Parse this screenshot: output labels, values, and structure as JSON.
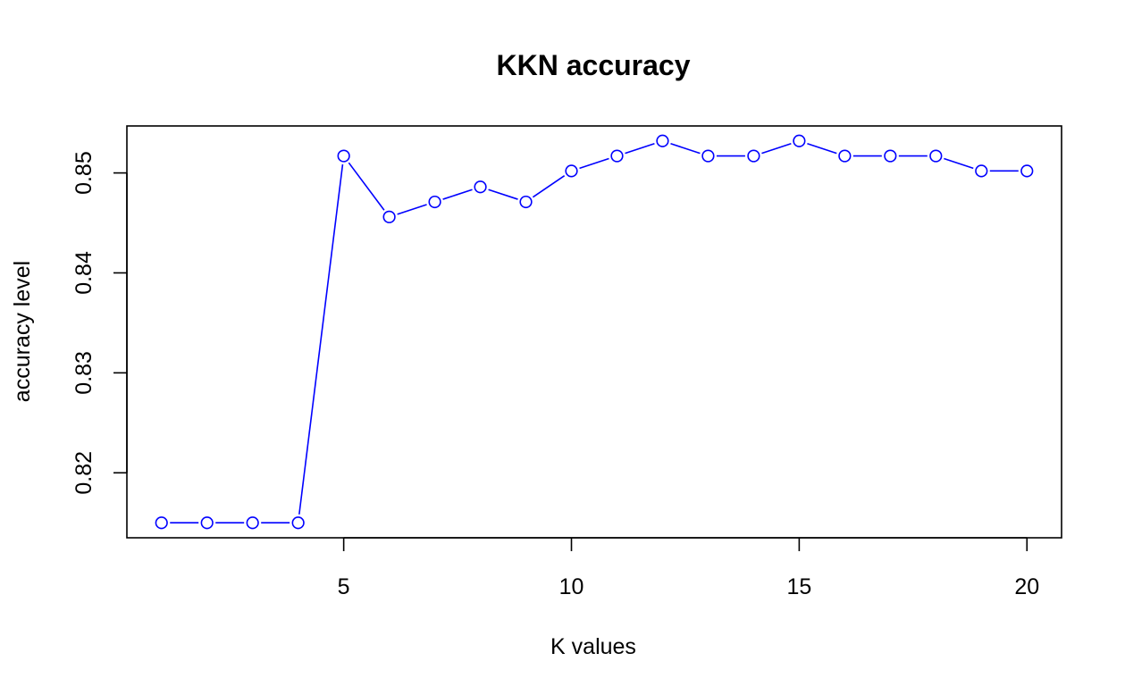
{
  "chart_data": {
    "type": "line",
    "title": "KKN accuracy",
    "xlabel": "K values",
    "ylabel": "accuracy level",
    "x": [
      1,
      2,
      3,
      4,
      5,
      6,
      7,
      8,
      9,
      10,
      11,
      12,
      13,
      14,
      15,
      16,
      17,
      18,
      19,
      20
    ],
    "series": [
      {
        "values": [
          0.815,
          0.815,
          0.815,
          0.815,
          0.8517,
          0.8456,
          0.8471,
          0.8486,
          0.8471,
          0.8502,
          0.8517,
          0.8532,
          0.8517,
          0.8517,
          0.8532,
          0.8517,
          0.8517,
          0.8517,
          0.8502,
          0.8502
        ],
        "color": "#0000ff",
        "line": true,
        "marker": "open-circle"
      }
    ],
    "xlim": [
      0.24,
      20.76
    ],
    "ylim": [
      0.8135,
      0.8547
    ],
    "xticks": [
      5,
      10,
      15,
      20
    ],
    "xtick_labels": [
      "5",
      "10",
      "15",
      "20"
    ],
    "yticks": [
      0.82,
      0.83,
      0.84,
      0.85
    ],
    "ytick_labels": [
      "0.82",
      "0.83",
      "0.84",
      "0.85"
    ],
    "grid": false,
    "legend": false
  }
}
